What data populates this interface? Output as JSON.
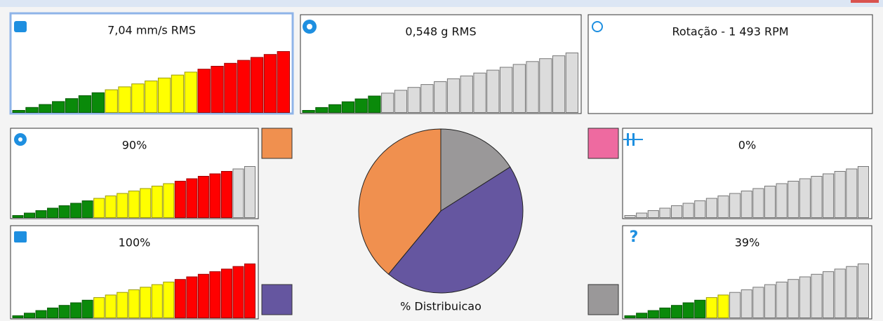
{
  "panels": [
    {
      "title": "7,04 mm/s RMS",
      "bar_colors": [
        "#0a8a0a",
        "#0a8a0a",
        "#0a8a0a",
        "#0a8a0a",
        "#0a8a0a",
        "#0a8a0a",
        "#0a8a0a",
        "#ffff00",
        "#ffff00",
        "#ffff00",
        "#ffff00",
        "#ffff00",
        "#ffff00",
        "#ffff00",
        "#ff0000",
        "#ff0000",
        "#ff0000",
        "#ff0000",
        "#ff0000",
        "#ff0000",
        "#ff0000"
      ]
    },
    {
      "title": "0,548 g RMS",
      "bar_colors": [
        "#0a8a0a",
        "#0a8a0a",
        "#0a8a0a",
        "#0a8a0a",
        "#0a8a0a",
        "#0a8a0a",
        "#dcdcdc",
        "#dcdcdc",
        "#dcdcdc",
        "#dcdcdc",
        "#dcdcdc",
        "#dcdcdc",
        "#dcdcdc",
        "#dcdcdc",
        "#dcdcdc",
        "#dcdcdc",
        "#dcdcdc",
        "#dcdcdc",
        "#dcdcdc",
        "#dcdcdc",
        "#dcdcdc"
      ]
    },
    {
      "title": "Rotação - 1 493 RPM",
      "bar_colors": []
    },
    {
      "title": "90%",
      "bar_colors": [
        "#0a8a0a",
        "#0a8a0a",
        "#0a8a0a",
        "#0a8a0a",
        "#0a8a0a",
        "#0a8a0a",
        "#0a8a0a",
        "#ffff00",
        "#ffff00",
        "#ffff00",
        "#ffff00",
        "#ffff00",
        "#ffff00",
        "#ffff00",
        "#ff0000",
        "#ff0000",
        "#ff0000",
        "#ff0000",
        "#ff0000",
        "#dcdcdc",
        "#dcdcdc"
      ]
    },
    {
      "title": "100%",
      "bar_colors": [
        "#0a8a0a",
        "#0a8a0a",
        "#0a8a0a",
        "#0a8a0a",
        "#0a8a0a",
        "#0a8a0a",
        "#0a8a0a",
        "#ffff00",
        "#ffff00",
        "#ffff00",
        "#ffff00",
        "#ffff00",
        "#ffff00",
        "#ffff00",
        "#ff0000",
        "#ff0000",
        "#ff0000",
        "#ff0000",
        "#ff0000",
        "#ff0000",
        "#ff0000"
      ]
    },
    {
      "title": "0%",
      "bar_colors": [
        "#dcdcdc",
        "#dcdcdc",
        "#dcdcdc",
        "#dcdcdc",
        "#dcdcdc",
        "#dcdcdc",
        "#dcdcdc",
        "#dcdcdc",
        "#dcdcdc",
        "#dcdcdc",
        "#dcdcdc",
        "#dcdcdc",
        "#dcdcdc",
        "#dcdcdc",
        "#dcdcdc",
        "#dcdcdc",
        "#dcdcdc",
        "#dcdcdc",
        "#dcdcdc",
        "#dcdcdc",
        "#dcdcdc"
      ]
    },
    {
      "title": "39%",
      "bar_colors": [
        "#0a8a0a",
        "#0a8a0a",
        "#0a8a0a",
        "#0a8a0a",
        "#0a8a0a",
        "#0a8a0a",
        "#0a8a0a",
        "#ffff00",
        "#ffff00",
        "#dcdcdc",
        "#dcdcdc",
        "#dcdcdc",
        "#dcdcdc",
        "#dcdcdc",
        "#dcdcdc",
        "#dcdcdc",
        "#dcdcdc",
        "#dcdcdc",
        "#dcdcdc",
        "#dcdcdc",
        "#dcdcdc"
      ]
    }
  ],
  "chart_data": {
    "type": "pie",
    "label": "% Distribuicao",
    "slices": [
      {
        "color": "#9a9899",
        "value": 16
      },
      {
        "color": "#6556a0",
        "value": 45
      },
      {
        "color": "#ee6aa0",
        "value": 0
      },
      {
        "color": "#f0904f",
        "value": 39
      }
    ]
  }
}
